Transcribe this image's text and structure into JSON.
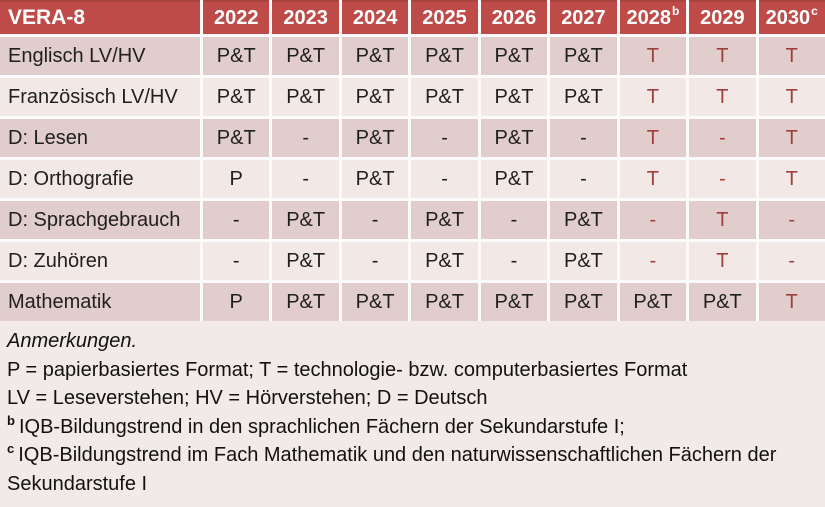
{
  "colors": {
    "header_bg": "#BE4B48",
    "header_top_edge": "#A8433F",
    "header_text": "#FFFFFF",
    "row_band_dark": "#E1CDCC",
    "row_band_light": "#F2E9E7",
    "cell_text": "#1F1F1F",
    "accent_red": "#A13F3C",
    "grid_gap": "#FCFAFA",
    "notes_bg": "#F2EAE8",
    "notes_text": "#111111"
  },
  "table": {
    "title": "VERA-8",
    "columns": [
      {
        "label": "2022",
        "sup": ""
      },
      {
        "label": "2023",
        "sup": ""
      },
      {
        "label": "2024",
        "sup": ""
      },
      {
        "label": "2025",
        "sup": ""
      },
      {
        "label": "2026",
        "sup": ""
      },
      {
        "label": "2027",
        "sup": ""
      },
      {
        "label": "2028",
        "sup": "b"
      },
      {
        "label": "2029",
        "sup": ""
      },
      {
        "label": "2030",
        "sup": "c"
      }
    ],
    "rows": [
      {
        "label": "Englisch LV/HV",
        "cells": [
          {
            "t": "P&T",
            "red": false
          },
          {
            "t": "P&T",
            "red": false
          },
          {
            "t": "P&T",
            "red": false
          },
          {
            "t": "P&T",
            "red": false
          },
          {
            "t": "P&T",
            "red": false
          },
          {
            "t": "P&T",
            "red": false
          },
          {
            "t": "T",
            "red": true
          },
          {
            "t": "T",
            "red": true
          },
          {
            "t": "T",
            "red": true
          }
        ]
      },
      {
        "label": "Französisch LV/HV",
        "cells": [
          {
            "t": "P&T",
            "red": false
          },
          {
            "t": "P&T",
            "red": false
          },
          {
            "t": "P&T",
            "red": false
          },
          {
            "t": "P&T",
            "red": false
          },
          {
            "t": "P&T",
            "red": false
          },
          {
            "t": "P&T",
            "red": false
          },
          {
            "t": "T",
            "red": true
          },
          {
            "t": "T",
            "red": true
          },
          {
            "t": "T",
            "red": true
          }
        ]
      },
      {
        "label": "D: Lesen",
        "cells": [
          {
            "t": "P&T",
            "red": false
          },
          {
            "t": "-",
            "red": false
          },
          {
            "t": "P&T",
            "red": false
          },
          {
            "t": "-",
            "red": false
          },
          {
            "t": "P&T",
            "red": false
          },
          {
            "t": "-",
            "red": false
          },
          {
            "t": "T",
            "red": true
          },
          {
            "t": "-",
            "red": true
          },
          {
            "t": "T",
            "red": true
          }
        ]
      },
      {
        "label": "D: Orthografie",
        "cells": [
          {
            "t": "P",
            "red": false
          },
          {
            "t": "-",
            "red": false
          },
          {
            "t": "P&T",
            "red": false
          },
          {
            "t": "-",
            "red": false
          },
          {
            "t": "P&T",
            "red": false
          },
          {
            "t": "-",
            "red": false
          },
          {
            "t": "T",
            "red": true
          },
          {
            "t": "-",
            "red": true
          },
          {
            "t": "T",
            "red": true
          }
        ]
      },
      {
        "label": "D: Sprachgebrauch",
        "cells": [
          {
            "t": "-",
            "red": false
          },
          {
            "t": "P&T",
            "red": false
          },
          {
            "t": "-",
            "red": false
          },
          {
            "t": "P&T",
            "red": false
          },
          {
            "t": "-",
            "red": false
          },
          {
            "t": "P&T",
            "red": false
          },
          {
            "t": "-",
            "red": true
          },
          {
            "t": "T",
            "red": true
          },
          {
            "t": "-",
            "red": true
          }
        ]
      },
      {
        "label": "D: Zuhören",
        "cells": [
          {
            "t": "-",
            "red": false
          },
          {
            "t": "P&T",
            "red": false
          },
          {
            "t": "-",
            "red": false
          },
          {
            "t": "P&T",
            "red": false
          },
          {
            "t": "-",
            "red": false
          },
          {
            "t": "P&T",
            "red": false
          },
          {
            "t": "-",
            "red": true
          },
          {
            "t": "T",
            "red": true
          },
          {
            "t": "-",
            "red": true
          }
        ]
      },
      {
        "label": "Mathematik",
        "cells": [
          {
            "t": "P",
            "red": false
          },
          {
            "t": "P&T",
            "red": false
          },
          {
            "t": "P&T",
            "red": false
          },
          {
            "t": "P&T",
            "red": false
          },
          {
            "t": "P&T",
            "red": false
          },
          {
            "t": "P&T",
            "red": false
          },
          {
            "t": "P&T",
            "red": false
          },
          {
            "t": "P&T",
            "red": false
          },
          {
            "t": "T",
            "red": true
          }
        ]
      }
    ]
  },
  "notes": {
    "lines": [
      {
        "text": "Anmerkungen.",
        "italic": true,
        "sup": ""
      },
      {
        "text": "P = papierbasiertes Format; T = technologie- bzw. computerbasiertes Format",
        "italic": false,
        "sup": ""
      },
      {
        "text": "LV = Leseverstehen; HV = Hörverstehen; D = Deutsch",
        "italic": false,
        "sup": ""
      },
      {
        "text": "IQB-Bildungstrend in den sprachlichen Fächern der Sekundarstufe I;",
        "italic": false,
        "sup": "b"
      },
      {
        "text": "IQB-Bildungstrend im Fach Mathematik und den naturwissenschaftlichen Fächern der Sekundarstufe I",
        "italic": false,
        "sup": "c"
      }
    ]
  }
}
